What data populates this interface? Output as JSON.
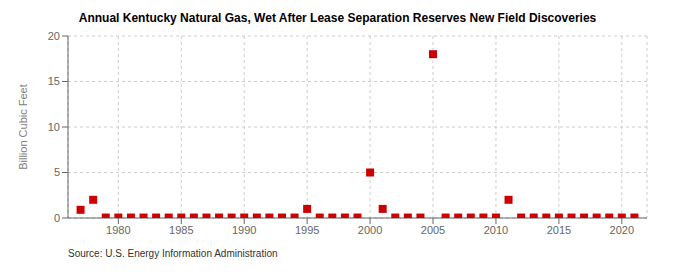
{
  "chart_data": {
    "type": "scatter",
    "title": "Annual Kentucky Natural Gas, Wet After Lease Separation Reserves New Field Discoveries",
    "y_label": "Billion Cubic Feet",
    "annotations": [
      "Source: U.S. Energy Information Administration"
    ],
    "x": [
      1977,
      1978,
      1979,
      1980,
      1981,
      1982,
      1983,
      1984,
      1985,
      1986,
      1987,
      1988,
      1989,
      1990,
      1991,
      1992,
      1993,
      1994,
      1995,
      1996,
      1997,
      1998,
      1999,
      2000,
      2001,
      2002,
      2003,
      2004,
      2005,
      2006,
      2007,
      2008,
      2009,
      2010,
      2011,
      2012,
      2013,
      2014,
      2015,
      2016,
      2017,
      2018,
      2019,
      2020,
      2021
    ],
    "values": [
      0.9,
      2.0,
      0.05,
      0.05,
      0.05,
      0.05,
      0.05,
      0.05,
      0.05,
      0.05,
      0.05,
      0.05,
      0.05,
      0.05,
      0.05,
      0.05,
      0.05,
      0.05,
      1.0,
      0.05,
      0.05,
      0.05,
      0.05,
      5.0,
      1.0,
      0.05,
      0.05,
      0.05,
      18.0,
      0.05,
      0.05,
      0.05,
      0.05,
      0.05,
      2.0,
      0.05,
      0.05,
      0.05,
      0.05,
      0.05,
      0.05,
      0.05,
      0.05,
      0.05,
      0.05
    ],
    "color": "#cc0000",
    "marker": "square",
    "xlim": [
      1976,
      2022
    ],
    "xticks": [
      1980,
      1985,
      1990,
      1995,
      2000,
      2005,
      2010,
      2015,
      2020
    ],
    "ylim": [
      0,
      20
    ],
    "yticks": [
      0,
      5,
      10,
      15,
      20
    ],
    "grid": true
  }
}
